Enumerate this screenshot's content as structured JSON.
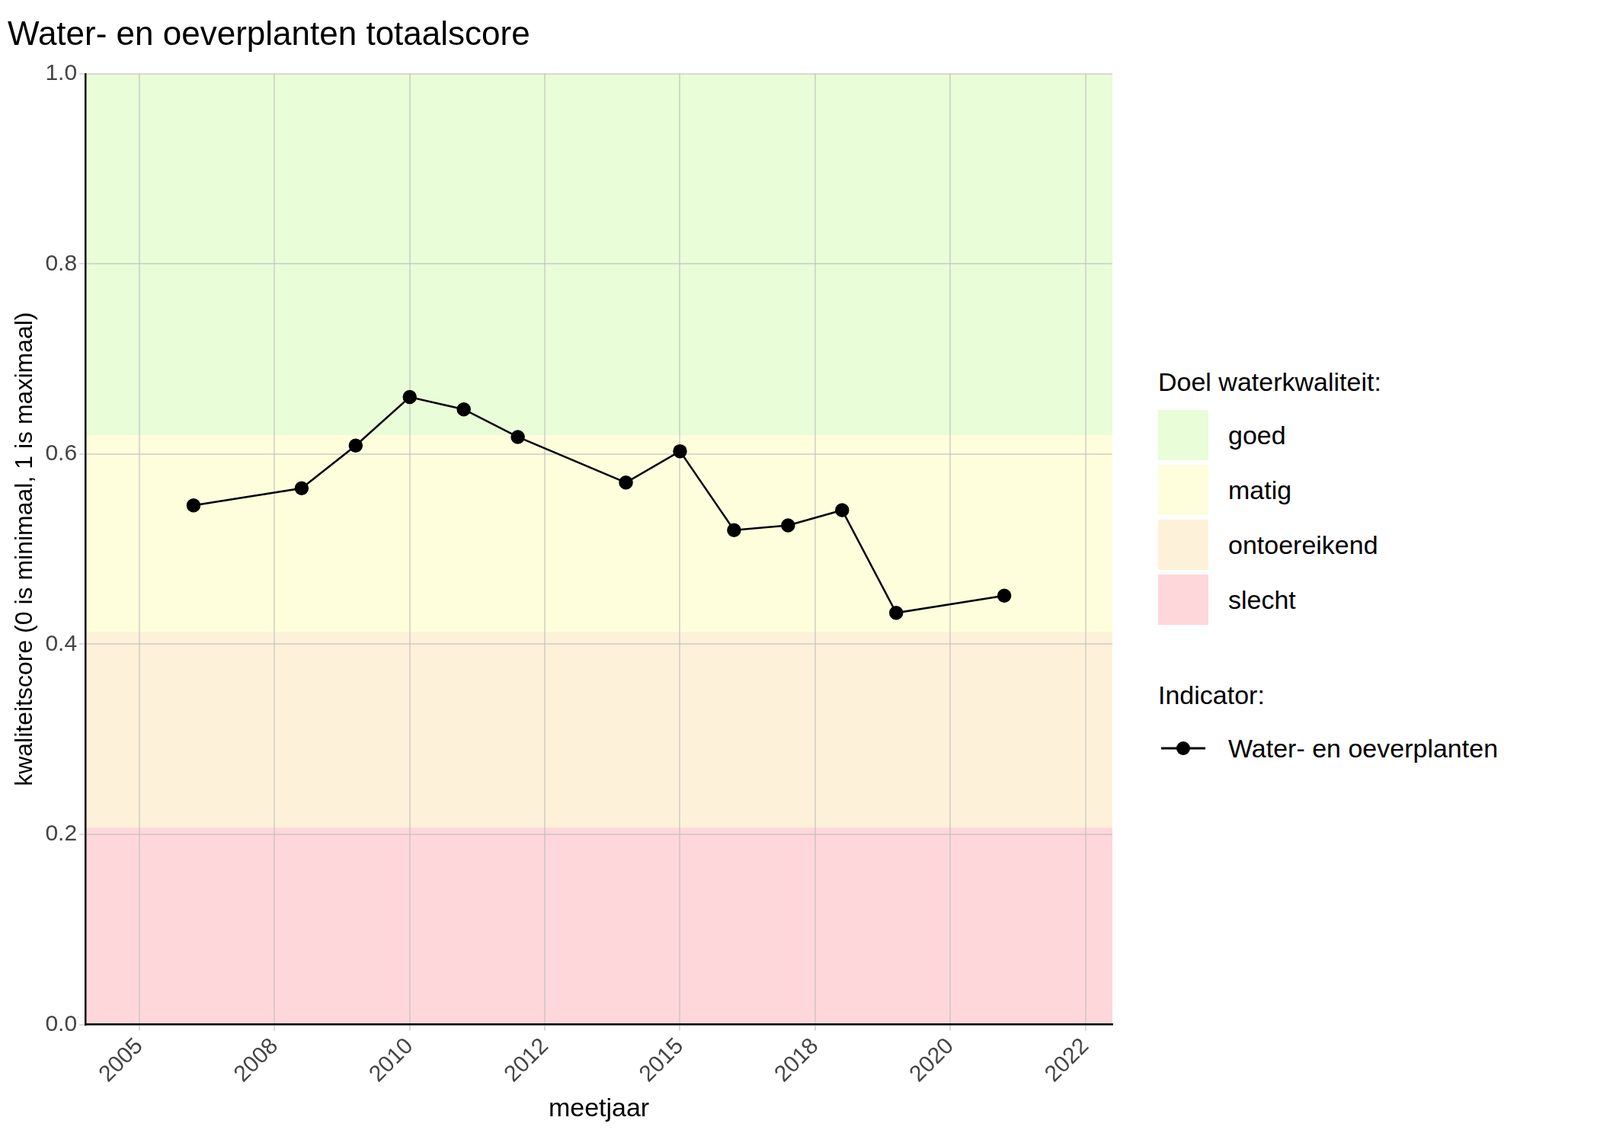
{
  "chart_data": {
    "type": "line",
    "title": "Water- en oeverplanten totaalscore",
    "x_label": "meetjaar",
    "y_label": "kwaliteitscore (0 is minimaal, 1 is maximaal)",
    "x": [
      2006.0,
      2008.0,
      2009.0,
      2010.0,
      2011.0,
      2012.0,
      2014.0,
      2015.0,
      2016.0,
      2017.0,
      2018.0,
      2019.0,
      2021.0
    ],
    "series": [
      {
        "name": "Water- en oeverplanten",
        "color": "#000000",
        "marker": "circle",
        "line_style": "solid",
        "values": [
          0.546,
          0.564,
          0.609,
          0.66,
          0.647,
          0.618,
          0.57,
          0.603,
          0.52,
          0.525,
          0.541,
          0.433,
          0.451
        ]
      }
    ],
    "xlim": [
      2004,
      2023
    ],
    "xticks": [
      {
        "value": 2005,
        "label": "2005"
      },
      {
        "value": 2007.5,
        "label": "2008"
      },
      {
        "value": 2010,
        "label": "2010"
      },
      {
        "value": 2012.5,
        "label": "2012"
      },
      {
        "value": 2015,
        "label": "2015"
      },
      {
        "value": 2017.5,
        "label": "2018"
      },
      {
        "value": 2020,
        "label": "2020"
      },
      {
        "value": 2022.5,
        "label": "2022"
      }
    ],
    "ylim": [
      0,
      1
    ],
    "yticks": [
      {
        "value": 0,
        "label": "0.0"
      },
      0.2,
      0.4,
      0.6,
      0.8,
      {
        "value": 1,
        "label": "1.0"
      }
    ],
    "grid": true,
    "legend": "right",
    "legend_title": "Doel waterkwaliteit:",
    "series_legend_title": "Indicator:",
    "bands": [
      {
        "name": "goed",
        "from": 0.62,
        "to": 1.0,
        "color": "#e8fdd8"
      },
      {
        "name": "matig",
        "from": 0.413,
        "to": 0.62,
        "color": "#fefedc"
      },
      {
        "name": "ontoereikend",
        "from": 0.207,
        "to": 0.413,
        "color": "#fef1d9"
      },
      {
        "name": "slecht",
        "from": 0.0,
        "to": 0.207,
        "color": "#fed7da"
      }
    ]
  }
}
